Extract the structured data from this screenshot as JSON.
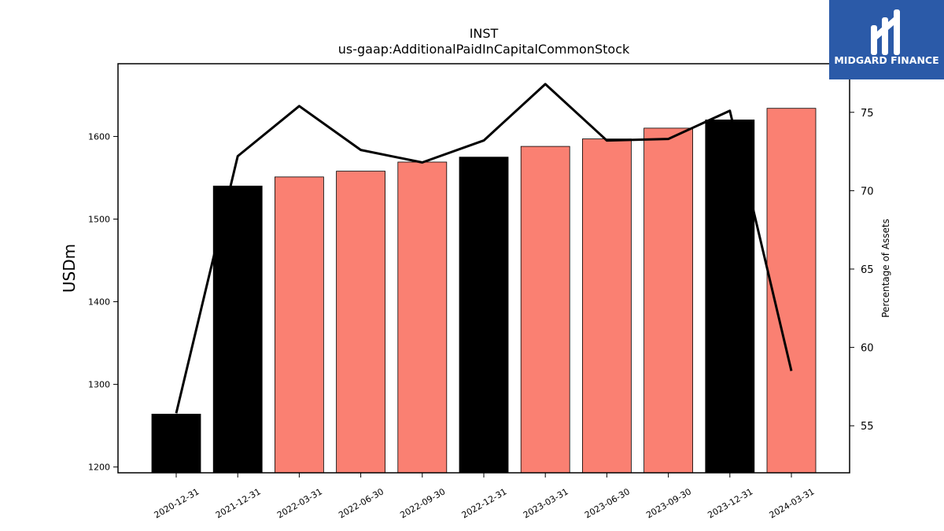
{
  "chart_data": {
    "type": "bar",
    "title": "INST",
    "subtitle": "us-gaap:AdditionalPaidInCapitalCommonStock",
    "ylabel": "USDm",
    "y2label": "Percentage of Assets",
    "categories": [
      "2020-12-31",
      "2021-12-31",
      "2022-03-31",
      "2022-06-30",
      "2022-09-30",
      "2022-12-31",
      "2023-03-31",
      "2023-06-30",
      "2023-09-30",
      "2023-12-31",
      "2024-03-31"
    ],
    "series": [
      {
        "type": "bar",
        "values": [
          1264,
          1540,
          1551,
          1558,
          1569,
          1575,
          1588,
          1597,
          1610,
          1620,
          1634
        ]
      },
      {
        "type": "line",
        "axis": "right",
        "values": [
          55.8,
          72.2,
          75.4,
          72.6,
          71.8,
          73.2,
          76.8,
          73.2,
          73.3,
          75.1,
          58.5
        ]
      }
    ],
    "bar_colors": [
      "#000000",
      "#000000",
      "#fa8072",
      "#fa8072",
      "#fa8072",
      "#000000",
      "#fa8072",
      "#fa8072",
      "#fa8072",
      "#000000",
      "#fa8072"
    ],
    "line_color": "#000000",
    "ylim": [
      1193,
      1688
    ],
    "y2lim": [
      52.0,
      78.1
    ],
    "yticks": [
      1200,
      1300,
      1400,
      1500,
      1600
    ],
    "y2ticks": [
      55,
      60,
      65,
      70,
      75
    ],
    "grid": false
  },
  "logo": {
    "text": "MIDGARD FINANCE",
    "bg_color": "#2b5aa8"
  }
}
